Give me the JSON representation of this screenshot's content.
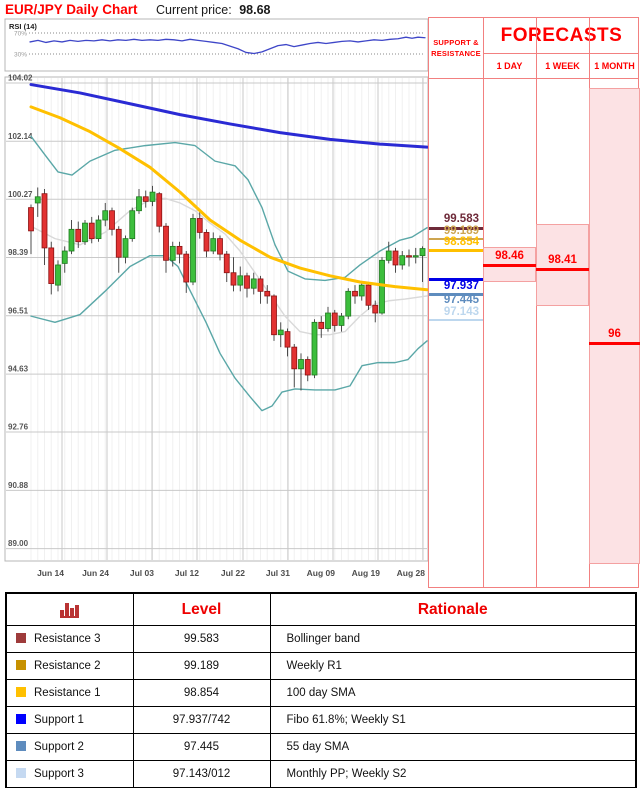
{
  "header": {
    "title": "EUR/JPY Daily Chart",
    "current_price_label": "Current price:",
    "current_price": "98.68"
  },
  "chart_data": {
    "type": "candlestick",
    "pair": "EUR/JPY",
    "timeframe": "Daily",
    "current_price": 98.68,
    "ylim": [
      89.0,
      104.02
    ],
    "grid": true,
    "y_ticks": [
      104.02,
      102.14,
      100.27,
      98.39,
      96.51,
      94.63,
      92.76,
      90.88,
      89.0
    ],
    "x_ticks": [
      "Jun 14",
      "Jun 24",
      "Jul 03",
      "Jul 12",
      "Jul 22",
      "Jul 31",
      "Aug 09",
      "Aug 19",
      "Aug 28"
    ],
    "candles_ohlc": [
      [
        100.0,
        100.1,
        98.5,
        99.25
      ],
      [
        100.15,
        100.65,
        99.7,
        100.35
      ],
      [
        100.45,
        100.6,
        98.15,
        98.7
      ],
      [
        98.7,
        98.9,
        97.2,
        97.55
      ],
      [
        97.5,
        98.3,
        97.3,
        98.15
      ],
      [
        98.2,
        98.75,
        97.9,
        98.6
      ],
      [
        98.6,
        99.6,
        98.5,
        99.3
      ],
      [
        99.3,
        99.55,
        98.7,
        98.9
      ],
      [
        98.9,
        99.6,
        98.8,
        99.5
      ],
      [
        99.5,
        99.7,
        98.85,
        99.0
      ],
      [
        99.0,
        99.75,
        98.9,
        99.6
      ],
      [
        99.6,
        100.15,
        99.4,
        99.9
      ],
      [
        99.9,
        100.0,
        99.1,
        99.3
      ],
      [
        99.3,
        99.4,
        97.9,
        98.4
      ],
      [
        98.4,
        99.1,
        98.2,
        99.0
      ],
      [
        99.0,
        100.0,
        98.9,
        99.9
      ],
      [
        99.9,
        100.6,
        99.8,
        100.35
      ],
      [
        100.35,
        100.55,
        100.0,
        100.2
      ],
      [
        100.2,
        100.7,
        100.05,
        100.5
      ],
      [
        100.45,
        100.5,
        99.2,
        99.4
      ],
      [
        99.4,
        99.5,
        97.9,
        98.3
      ],
      [
        98.3,
        98.9,
        98.1,
        98.75
      ],
      [
        98.75,
        98.9,
        98.2,
        98.5
      ],
      [
        98.5,
        98.6,
        97.25,
        97.6
      ],
      [
        97.6,
        99.8,
        97.5,
        99.65
      ],
      [
        99.65,
        99.9,
        99.0,
        99.2
      ],
      [
        99.2,
        99.3,
        98.4,
        98.6
      ],
      [
        98.6,
        99.2,
        98.5,
        99.0
      ],
      [
        99.0,
        99.1,
        98.3,
        98.5
      ],
      [
        98.5,
        98.6,
        97.6,
        97.9
      ],
      [
        97.9,
        98.4,
        97.3,
        97.5
      ],
      [
        97.5,
        98.1,
        97.3,
        97.8
      ],
      [
        97.8,
        97.9,
        97.1,
        97.4
      ],
      [
        97.4,
        97.9,
        97.2,
        97.7
      ],
      [
        97.7,
        97.8,
        96.9,
        97.3
      ],
      [
        97.3,
        97.5,
        96.9,
        97.15
      ],
      [
        97.15,
        97.2,
        95.7,
        95.9
      ],
      [
        95.9,
        96.3,
        95.5,
        96.05
      ],
      [
        96.0,
        96.1,
        95.2,
        95.5
      ],
      [
        95.5,
        95.6,
        94.2,
        94.8
      ],
      [
        94.8,
        95.3,
        94.1,
        95.1
      ],
      [
        95.1,
        95.2,
        94.4,
        94.6
      ],
      [
        94.6,
        96.4,
        94.5,
        96.3
      ],
      [
        96.3,
        96.5,
        95.8,
        96.1
      ],
      [
        96.1,
        96.8,
        96.0,
        96.6
      ],
      [
        96.6,
        96.7,
        96.0,
        96.2
      ],
      [
        96.2,
        96.6,
        96.0,
        96.5
      ],
      [
        96.5,
        97.4,
        96.4,
        97.3
      ],
      [
        97.3,
        97.5,
        96.9,
        97.15
      ],
      [
        97.15,
        97.6,
        97.0,
        97.5
      ],
      [
        97.5,
        97.55,
        96.7,
        96.85
      ],
      [
        96.85,
        97.0,
        96.3,
        96.6
      ],
      [
        96.6,
        98.4,
        96.55,
        98.3
      ],
      [
        98.3,
        98.9,
        98.2,
        98.6
      ],
      [
        98.6,
        98.7,
        97.9,
        98.15
      ],
      [
        98.15,
        98.6,
        98.0,
        98.45
      ],
      [
        98.45,
        98.65,
        98.1,
        98.42
      ],
      [
        98.42,
        98.7,
        98.2,
        98.45
      ],
      [
        98.45,
        98.75,
        97.6,
        98.68
      ]
    ],
    "candle_colors": {
      "up": "#3cbe3c",
      "up_border": "#1f7a1f",
      "down": "#e23232",
      "down_border": "#8a1212"
    },
    "overlays": [
      {
        "name": "200-day-sma",
        "color": "#2a2ad4",
        "width": 3,
        "points": [
          [
            31,
            103.97
          ],
          [
            80,
            103.7
          ],
          [
            130,
            103.35
          ],
          [
            180,
            103.0
          ],
          [
            230,
            102.7
          ],
          [
            280,
            102.42
          ],
          [
            330,
            102.2
          ],
          [
            380,
            102.05
          ],
          [
            427,
            101.95
          ]
        ]
      },
      {
        "name": "100-day-sma",
        "color": "#ffc000",
        "width": 3,
        "points": [
          [
            31,
            103.25
          ],
          [
            60,
            102.9
          ],
          [
            90,
            102.45
          ],
          [
            120,
            101.9
          ],
          [
            150,
            101.3
          ],
          [
            180,
            100.5
          ],
          [
            210,
            99.6
          ],
          [
            240,
            98.95
          ],
          [
            270,
            98.4
          ],
          [
            300,
            98.05
          ],
          [
            330,
            97.8
          ],
          [
            360,
            97.6
          ],
          [
            395,
            97.45
          ],
          [
            427,
            97.35
          ]
        ]
      },
      {
        "name": "bollinger-upper",
        "color": "#5aa7a7",
        "width": 1.4,
        "points": [
          [
            31,
            102.3
          ],
          [
            45,
            101.7
          ],
          [
            58,
            101.15
          ],
          [
            72,
            101.05
          ],
          [
            90,
            101.5
          ],
          [
            115,
            101.85
          ],
          [
            145,
            102.0
          ],
          [
            175,
            102.1
          ],
          [
            195,
            102.0
          ],
          [
            215,
            101.5
          ],
          [
            235,
            101.35
          ],
          [
            248,
            100.9
          ],
          [
            262,
            100.0
          ],
          [
            275,
            98.8
          ],
          [
            288,
            97.95
          ],
          [
            305,
            97.7
          ],
          [
            325,
            97.65
          ],
          [
            345,
            97.75
          ],
          [
            360,
            98.15
          ],
          [
            380,
            98.6
          ],
          [
            400,
            98.95
          ],
          [
            412,
            99.05
          ],
          [
            427,
            99.35
          ]
        ]
      },
      {
        "name": "bollinger-lower",
        "color": "#5aa7a7",
        "width": 1.4,
        "points": [
          [
            31,
            96.5
          ],
          [
            55,
            96.3
          ],
          [
            80,
            96.55
          ],
          [
            105,
            97.3
          ],
          [
            130,
            98.1
          ],
          [
            150,
            98.45
          ],
          [
            165,
            98.45
          ],
          [
            178,
            98.1
          ],
          [
            192,
            97.2
          ],
          [
            206,
            96.3
          ],
          [
            220,
            95.3
          ],
          [
            235,
            94.5
          ],
          [
            250,
            93.9
          ],
          [
            262,
            93.45
          ],
          [
            272,
            93.6
          ],
          [
            282,
            94.05
          ],
          [
            295,
            94.15
          ],
          [
            315,
            94.12
          ],
          [
            335,
            94.12
          ],
          [
            350,
            94.25
          ],
          [
            362,
            94.9
          ],
          [
            378,
            95.0
          ],
          [
            395,
            95.0
          ],
          [
            408,
            95.1
          ],
          [
            418,
            95.45
          ],
          [
            427,
            95.7
          ]
        ]
      },
      {
        "name": "bollinger-mid",
        "color": "#d9d9d9",
        "width": 1.4,
        "points": [
          [
            31,
            99.4
          ],
          [
            55,
            99.0
          ],
          [
            80,
            98.8
          ],
          [
            105,
            99.2
          ],
          [
            130,
            99.9
          ],
          [
            150,
            100.25
          ],
          [
            165,
            100.3
          ],
          [
            180,
            100.15
          ],
          [
            195,
            99.9
          ],
          [
            210,
            99.5
          ],
          [
            225,
            99.15
          ],
          [
            240,
            98.6
          ],
          [
            255,
            97.9
          ],
          [
            270,
            97.2
          ],
          [
            285,
            96.5
          ],
          [
            300,
            96.0
          ],
          [
            315,
            95.9
          ],
          [
            330,
            95.9
          ],
          [
            345,
            96.0
          ],
          [
            360,
            96.5
          ],
          [
            375,
            96.9
          ],
          [
            390,
            97.0
          ],
          [
            405,
            97.05
          ],
          [
            427,
            97.15
          ]
        ]
      }
    ],
    "rsi_panel": {
      "label": "RSI (14)",
      "upper_label": "70%",
      "lower_label": "30%",
      "upper": 70,
      "lower": 30,
      "color": "#3e46c8",
      "series": [
        [
          30,
          53
        ],
        [
          38,
          56
        ],
        [
          46,
          52
        ],
        [
          54,
          55
        ],
        [
          62,
          53
        ],
        [
          70,
          56
        ],
        [
          78,
          54
        ],
        [
          86,
          56
        ],
        [
          94,
          55
        ],
        [
          102,
          57
        ],
        [
          110,
          55
        ],
        [
          118,
          57
        ],
        [
          126,
          56
        ],
        [
          134,
          58
        ],
        [
          142,
          56
        ],
        [
          150,
          57
        ],
        [
          158,
          56
        ],
        [
          166,
          58
        ],
        [
          174,
          57
        ],
        [
          182,
          55
        ],
        [
          190,
          58
        ],
        [
          198,
          56
        ],
        [
          206,
          54
        ],
        [
          214,
          52
        ],
        [
          222,
          50
        ],
        [
          230,
          45
        ],
        [
          238,
          40
        ],
        [
          246,
          33
        ],
        [
          254,
          31
        ],
        [
          262,
          34
        ],
        [
          270,
          40
        ],
        [
          278,
          46
        ],
        [
          286,
          48
        ],
        [
          294,
          44
        ],
        [
          302,
          47
        ],
        [
          310,
          50
        ],
        [
          318,
          52
        ],
        [
          326,
          50
        ],
        [
          334,
          52
        ],
        [
          342,
          54
        ],
        [
          350,
          55
        ],
        [
          358,
          53
        ],
        [
          366,
          55
        ],
        [
          374,
          57
        ],
        [
          382,
          56
        ],
        [
          390,
          58
        ],
        [
          398,
          59
        ],
        [
          406,
          62
        ],
        [
          412,
          60
        ],
        [
          418,
          62
        ],
        [
          425,
          61
        ]
      ]
    }
  },
  "sr_panel": {
    "header": "SUPPORT & RESISTANCE",
    "levels": [
      {
        "label": "99.583",
        "value": 99.583,
        "color": "#6e2a39",
        "kind": "resistance"
      },
      {
        "label": "99.189",
        "value": 99.189,
        "color": "#cda550",
        "kind": "resistance"
      },
      {
        "label": "98.854",
        "value": 98.854,
        "color": "#ffc000",
        "kind": "resistance"
      },
      {
        "label": "97.937",
        "value": 97.937,
        "color": "#0000e6",
        "kind": "support"
      },
      {
        "label": "97.445",
        "value": 97.445,
        "color": "#5e8cbe",
        "kind": "support"
      },
      {
        "label": "97.143",
        "value": 97.143,
        "color": "#bdd7ee",
        "kind": "support"
      }
    ]
  },
  "forecasts": {
    "title": "FORECASTS",
    "columns": [
      {
        "label": "1 DAY",
        "value": "98.46",
        "value_num": 98.46
      },
      {
        "label": "1 WEEK",
        "value": "98.41",
        "value_num": 98.41
      },
      {
        "label": "1 MONTH",
        "value": "96",
        "value_num": 96
      }
    ]
  },
  "table": {
    "level_header": "Level",
    "rationale_header": "Rationale",
    "rows": [
      {
        "swatch": "#9e3b3b",
        "name": "Resistance 3",
        "level": "99.583",
        "rationale": "Bollinger band"
      },
      {
        "swatch": "#c79100",
        "name": "Resistance 2",
        "level": "99.189",
        "rationale": "Weekly R1"
      },
      {
        "swatch": "#ffc000",
        "name": "Resistance 1",
        "level": "98.854",
        "rationale": "100 day SMA"
      },
      {
        "swatch": "#0000ff",
        "name": "Support 1",
        "level": "97.937/742",
        "rationale": "Fibo 61.8%; Weekly S1"
      },
      {
        "swatch": "#5e8cbe",
        "name": "Support 2",
        "level": "97.445",
        "rationale": "55 day SMA"
      },
      {
        "swatch": "#c5d9f1",
        "name": "Support 3",
        "level": "97.143/012",
        "rationale": "Monthly PP; Weekly S2"
      }
    ]
  }
}
